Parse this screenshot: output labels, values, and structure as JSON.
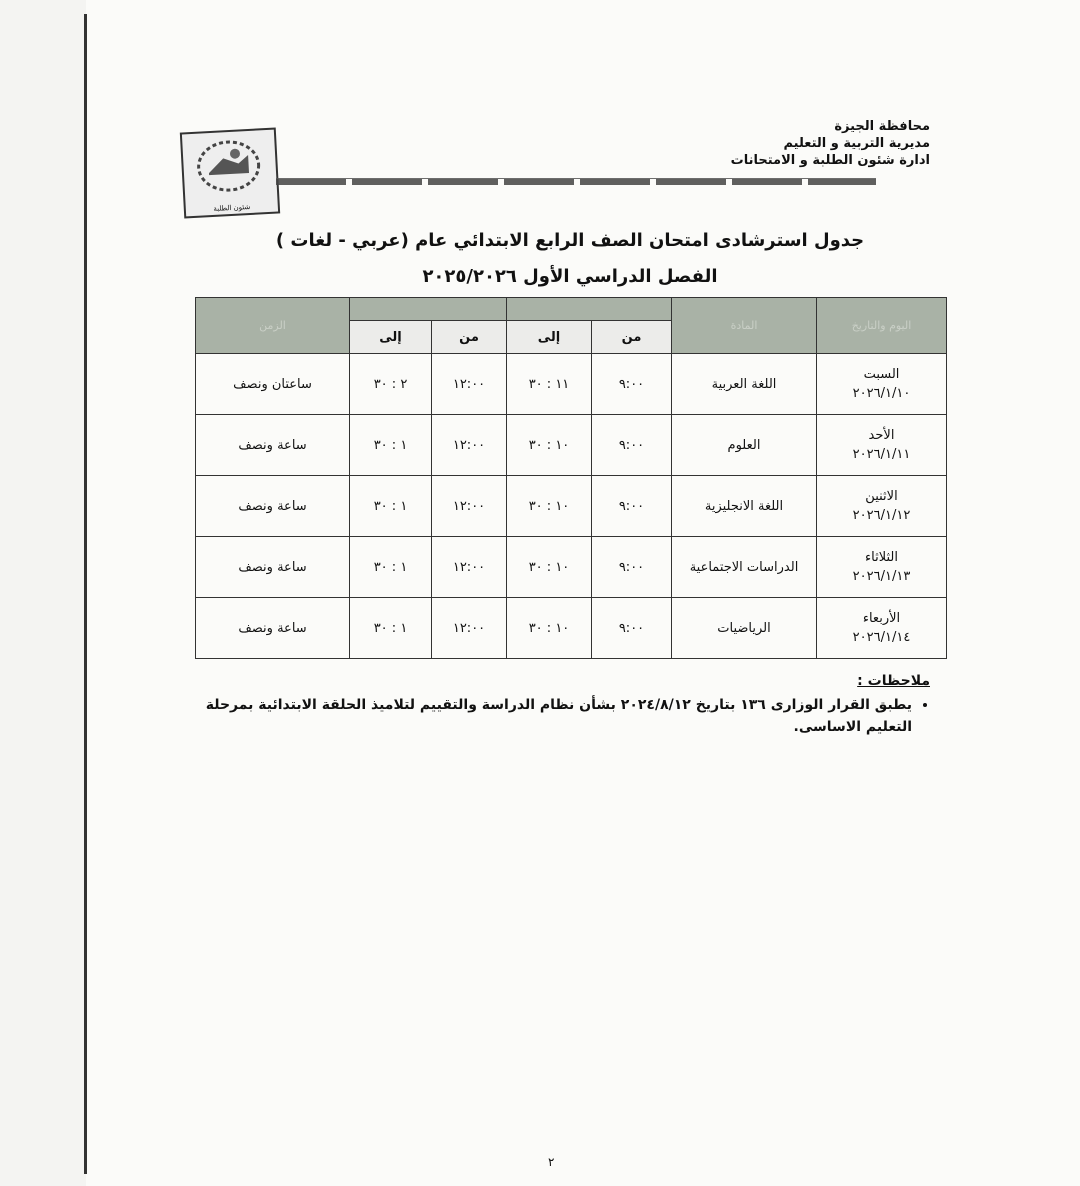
{
  "header": {
    "lines": [
      "محافظة الجيزة",
      "مديرية التربية و التعليم",
      "ادارة شئون الطلبة و الامتحانات"
    ]
  },
  "logo": {
    "text": "شئون الطلبة"
  },
  "title": "جدول استرشادى امتحان الصف الرابع الابتدائي عام (عربي - لغات )",
  "subtitle": "الفصل الدراسي الأول ٢٠٢٥/٢٠٢٦",
  "table": {
    "headers": {
      "day": "اليوم والتاريخ",
      "subject": "المادة",
      "group1": "",
      "group2": "",
      "duration": "الزمن"
    },
    "sub": [
      "من",
      "إلى",
      "من",
      "إلى"
    ],
    "rows": [
      {
        "day": "السبت",
        "date": "٢٠٢٦/١/١٠",
        "subject": "اللغة العربية",
        "from1": "٩:٠٠",
        "to1": "١١ : ٣٠",
        "from2": "١٢:٠٠",
        "to2": "٢ : ٣٠",
        "duration": "ساعتان ونصف"
      },
      {
        "day": "الأحد",
        "date": "٢٠٢٦/١/١١",
        "subject": "العلوم",
        "from1": "٩:٠٠",
        "to1": "١٠ : ٣٠",
        "from2": "١٢:٠٠",
        "to2": "١ : ٣٠",
        "duration": "ساعة ونصف"
      },
      {
        "day": "الاثنين",
        "date": "٢٠٢٦/١/١٢",
        "subject": "اللغة الانجليزية",
        "from1": "٩:٠٠",
        "to1": "١٠ : ٣٠",
        "from2": "١٢:٠٠",
        "to2": "١ : ٣٠",
        "duration": "ساعة ونصف"
      },
      {
        "day": "الثلاثاء",
        "date": "٢٠٢٦/١/١٣",
        "subject": "الدراسات الاجتماعية",
        "from1": "٩:٠٠",
        "to1": "١٠ : ٣٠",
        "from2": "١٢:٠٠",
        "to2": "١ : ٣٠",
        "duration": "ساعة ونصف"
      },
      {
        "day": "الأربعاء",
        "date": "٢٠٢٦/١/١٤",
        "subject": "الرياضيات",
        "from1": "٩:٠٠",
        "to1": "١٠ : ٣٠",
        "from2": "١٢:٠٠",
        "to2": "١ : ٣٠",
        "duration": "ساعة ونصف"
      }
    ]
  },
  "notes": {
    "heading": "ملاحظات :",
    "items": [
      "يطبق القرار الوزارى ١٣٦ بتاريخ ٢٠٢٤/٨/١٢ بشأن نظام الدراسة والتقييم لتلاميذ الحلقة الابتدائية بمرحلة التعليم الاساسى."
    ]
  },
  "page_number": "٢"
}
